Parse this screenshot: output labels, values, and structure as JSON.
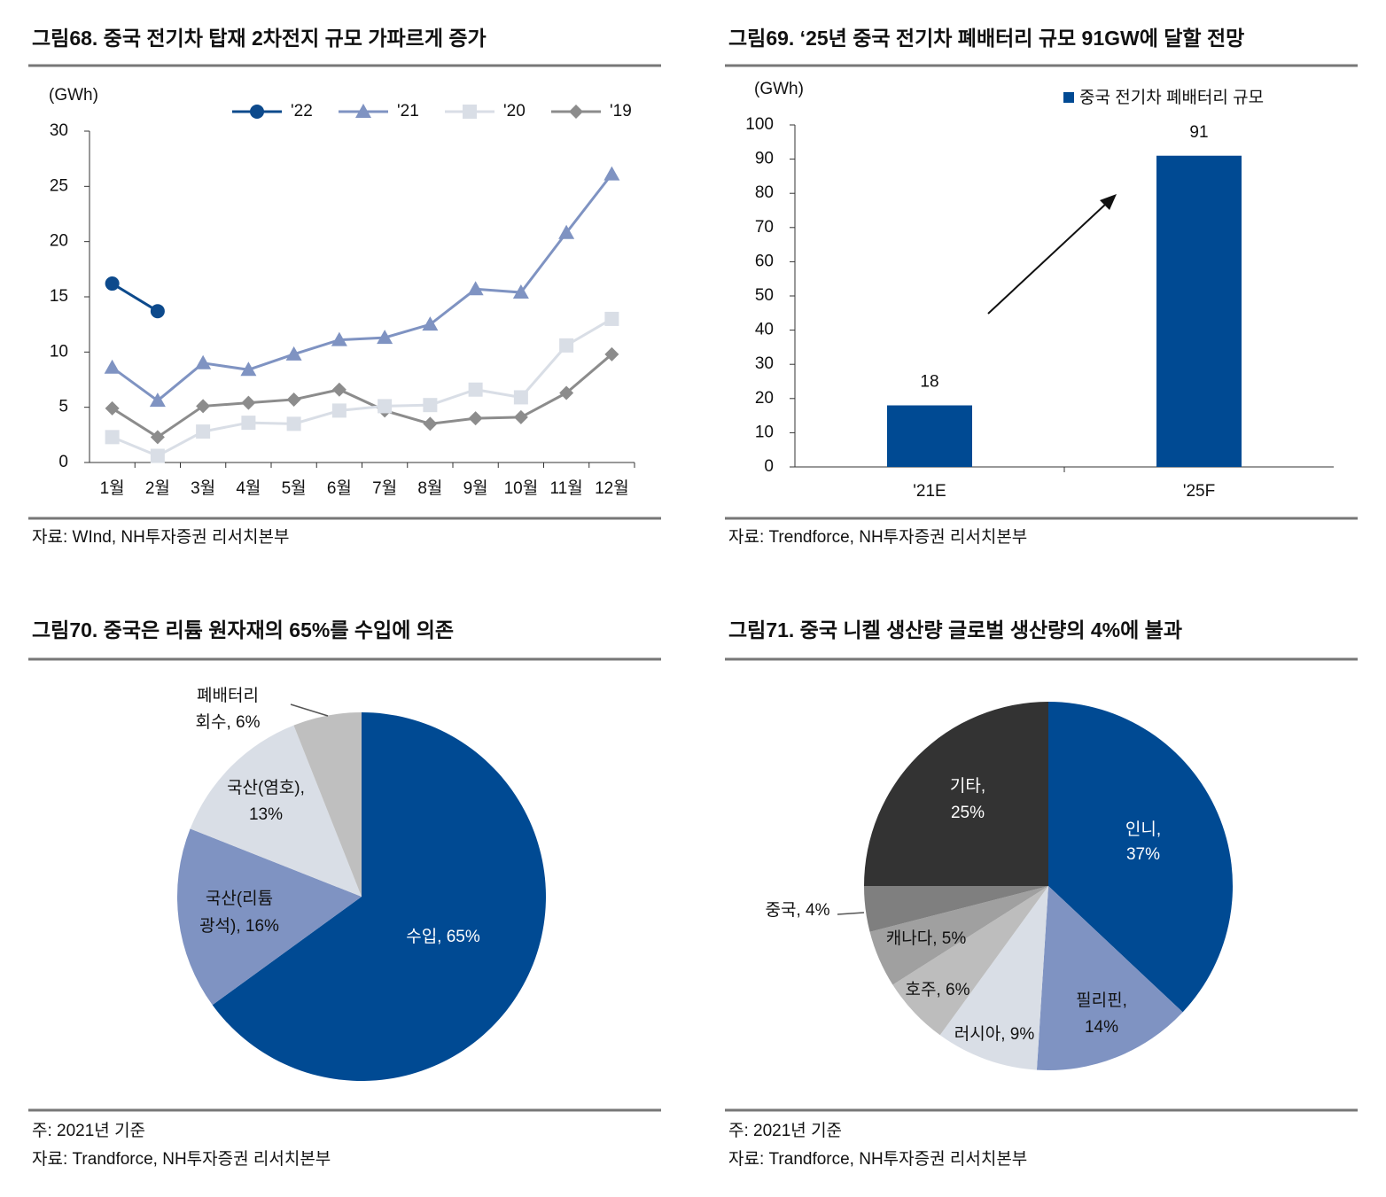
{
  "chart_data": [
    {
      "type": "line",
      "title": "그림68. 중국 전기차 탑재 2차전지 규모 가파르게 증가",
      "y_label": "(GWh)",
      "source": "자료: WInd, NH투자증권 리서치본부",
      "categories": [
        "1월",
        "2월",
        "3월",
        "4월",
        "5월",
        "6월",
        "7월",
        "8월",
        "9월",
        "10월",
        "11월",
        "12월"
      ],
      "ylim": [
        0,
        30
      ],
      "yticks": [
        0,
        5,
        10,
        15,
        20,
        25,
        30
      ],
      "series": [
        {
          "name": "'22",
          "color": "#0d4a8c",
          "marker": "circle",
          "values": [
            16.2,
            13.7,
            null,
            null,
            null,
            null,
            null,
            null,
            null,
            null,
            null,
            null
          ]
        },
        {
          "name": "'21",
          "color": "#7f93c2",
          "marker": "triangle",
          "values": [
            8.6,
            5.6,
            9.0,
            8.4,
            9.8,
            11.1,
            11.3,
            12.5,
            15.7,
            15.4,
            20.8,
            26.1
          ]
        },
        {
          "name": "'20",
          "color": "#d9dee6",
          "marker": "square",
          "values": [
            2.3,
            0.6,
            2.8,
            3.6,
            3.5,
            4.7,
            5.1,
            5.2,
            6.6,
            5.9,
            10.6,
            13.0
          ]
        },
        {
          "name": "'19",
          "color": "#8c8c8c",
          "marker": "diamond",
          "values": [
            4.9,
            2.3,
            5.1,
            5.4,
            5.7,
            6.6,
            4.7,
            3.5,
            4.0,
            4.1,
            6.3,
            9.8
          ]
        }
      ]
    },
    {
      "type": "bar",
      "title": "그림69. ‘25년 중국 전기차 폐배터리 규모 91GW에 달할 전망",
      "y_label": "(GWh)",
      "source": "자료: Trendforce, NH투자증권 리서치본부",
      "categories": [
        "'21E",
        "'25F"
      ],
      "series": [
        {
          "name": "중국 전기차 폐배터리 규모",
          "color": "#004a93",
          "values": [
            18,
            91
          ]
        }
      ],
      "ylim": [
        0,
        100
      ],
      "yticks": [
        0,
        10,
        20,
        30,
        40,
        50,
        60,
        70,
        80,
        90,
        100
      ]
    },
    {
      "type": "pie",
      "title": "그림70. 중국은 리튬 원자재의 65%를 수입에 의존",
      "note": "주: 2021년 기준",
      "source": "자료: Trandforce, NH투자증권 리서치본부",
      "values": [
        65,
        16,
        13,
        6
      ],
      "colors": [
        "#004a93",
        "#7f93c2",
        "#d9dee6",
        "#bfbfbf"
      ],
      "labels": [
        [
          "수입, 65%"
        ],
        [
          "국산(리튬",
          "광석), 16%"
        ],
        [
          "국산(염호),",
          "13%"
        ],
        [
          "폐배터리",
          "회수, 6%"
        ]
      ]
    },
    {
      "type": "pie",
      "title": "그림71. 중국 니켈 생산량 글로벌 생산량의 4%에 불과",
      "note": "주: 2021년 기준",
      "source": "자료: Trandforce, NH투자증권 리서치본부",
      "values": [
        37,
        14,
        9,
        6,
        5,
        4,
        25
      ],
      "colors": [
        "#004a93",
        "#7f93c2",
        "#d9dee6",
        "#bdbdbd",
        "#a0a0a0",
        "#7f7f7f",
        "#333333"
      ],
      "labels": [
        [
          "인니,",
          "37%"
        ],
        [
          "필리핀,",
          "14%"
        ],
        [
          "러시아, 9%"
        ],
        [
          "호주, 6%"
        ],
        [
          "캐나다, 5%"
        ],
        [
          "중국, 4%"
        ],
        [
          "기타,",
          "25%"
        ]
      ]
    }
  ]
}
